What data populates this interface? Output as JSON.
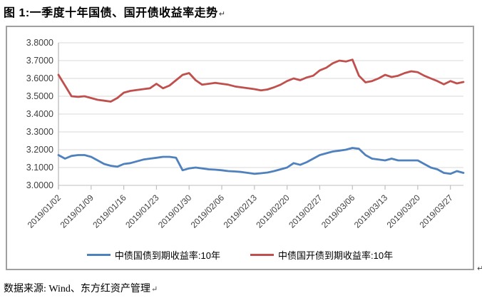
{
  "title": "图 1:一季度十年国债、国开债收益率走势",
  "para_mark": "↵",
  "source_note": "数据来源: Wind、东方红资产管理",
  "colors": {
    "gov_bond_line": "#4F81BD",
    "cdb_bond_line": "#C0504D",
    "chart_border": "#A0A0A0",
    "gridline": "#D9D9D9",
    "axis_line": "#BFBFBF",
    "axis_text": "#404040"
  },
  "chart_data": {
    "type": "line",
    "title": "",
    "xlabel": "",
    "ylabel": "",
    "ylim": [
      3.0,
      3.8
    ],
    "y_tick_step": 0.1,
    "grid": "horizontal",
    "legend_position": "bottom",
    "y_tick_labels": [
      "3.0000",
      "3.1000",
      "3.2000",
      "3.3000",
      "3.4000",
      "3.5000",
      "3.6000",
      "3.7000",
      "3.8000"
    ],
    "x_tick_labels": [
      "2019/01/02",
      "2019/01/09",
      "2019/01/16",
      "2019/01/23",
      "2019/01/30",
      "2019/02/06",
      "2019/02/13",
      "2019/02/20",
      "2019/02/27",
      "2019/03/06",
      "2019/03/13",
      "2019/03/20",
      "2019/03/27"
    ],
    "points_per_tick": 5,
    "series": [
      {
        "name": "中债国债到期收益率:10年",
        "color": "#4F81BD",
        "values": [
          3.17,
          3.15,
          3.165,
          3.17,
          3.17,
          3.16,
          3.14,
          3.12,
          3.11,
          3.105,
          3.12,
          3.125,
          3.135,
          3.145,
          3.15,
          3.155,
          3.16,
          3.16,
          3.155,
          3.085,
          3.095,
          3.1,
          3.095,
          3.09,
          3.088,
          3.085,
          3.08,
          3.078,
          3.075,
          3.07,
          3.065,
          3.068,
          3.072,
          3.08,
          3.09,
          3.1,
          3.125,
          3.115,
          3.13,
          3.15,
          3.17,
          3.18,
          3.19,
          3.195,
          3.2,
          3.21,
          3.205,
          3.17,
          3.15,
          3.145,
          3.14,
          3.15,
          3.14,
          3.14,
          3.14,
          3.14,
          3.12,
          3.1,
          3.09,
          3.07,
          3.065,
          3.08,
          3.07
        ]
      },
      {
        "name": "中债国开债到期收益率:10年",
        "color": "#C0504D",
        "values": [
          3.62,
          3.56,
          3.5,
          3.497,
          3.5,
          3.49,
          3.48,
          3.475,
          3.47,
          3.49,
          3.52,
          3.53,
          3.535,
          3.54,
          3.545,
          3.57,
          3.545,
          3.56,
          3.59,
          3.62,
          3.63,
          3.59,
          3.565,
          3.57,
          3.575,
          3.57,
          3.565,
          3.555,
          3.55,
          3.545,
          3.54,
          3.533,
          3.538,
          3.55,
          3.565,
          3.585,
          3.6,
          3.59,
          3.605,
          3.615,
          3.645,
          3.66,
          3.685,
          3.7,
          3.695,
          3.705,
          3.615,
          3.578,
          3.585,
          3.6,
          3.62,
          3.608,
          3.615,
          3.63,
          3.64,
          3.635,
          3.615,
          3.6,
          3.585,
          3.567,
          3.585,
          3.572,
          3.58
        ]
      }
    ]
  }
}
